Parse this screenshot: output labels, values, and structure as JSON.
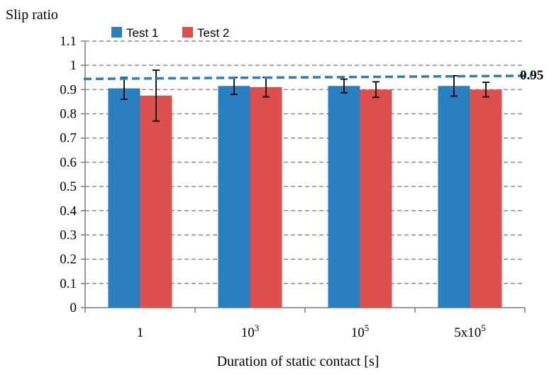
{
  "chart_data": {
    "type": "bar",
    "ylabel": "Slip ratio",
    "xlabel": "Duration of static contact [s]",
    "ylim": [
      0,
      1.1
    ],
    "yticks": [
      0,
      0.1,
      0.2,
      0.3,
      0.4,
      0.5,
      0.6,
      0.7,
      0.8,
      0.9,
      1,
      1.1
    ],
    "ytick_labels": [
      "0",
      "0.1",
      "0.2",
      "0.3",
      "0.4",
      "0.5",
      "0.6",
      "0.7",
      "0.8",
      "0.9",
      "1",
      "1.1"
    ],
    "categories": [
      {
        "base": "1",
        "sup": ""
      },
      {
        "base": "10",
        "sup": "3"
      },
      {
        "base": "10",
        "sup": "5"
      },
      {
        "base": "5x10",
        "sup": "5"
      }
    ],
    "series": [
      {
        "name": "Test 1",
        "color": "#2a7fc1",
        "values": [
          0.905,
          0.915,
          0.915,
          0.915
        ],
        "errors": [
          0.045,
          0.035,
          0.028,
          0.042
        ]
      },
      {
        "name": "Test 2",
        "color": "#dd4e4d",
        "values": [
          0.875,
          0.91,
          0.9,
          0.9
        ],
        "errors": [
          0.105,
          0.04,
          0.032,
          0.03
        ]
      }
    ],
    "reference_line": {
      "label": "0.95",
      "start": 0.944,
      "end": 0.957,
      "color": "#2a7fc1",
      "style": "dashed"
    },
    "grid": "horizontal dashed",
    "legend": "top"
  }
}
